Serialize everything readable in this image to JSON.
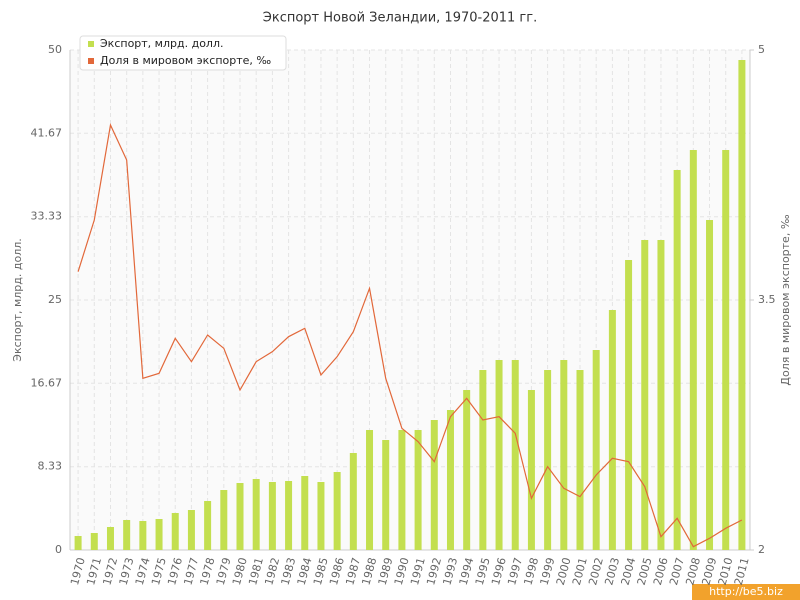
{
  "chart_data": {
    "type": "bar",
    "title": "Экспорт Новой Зеландии, 1970-2011 гг.",
    "y_label": "Экспорт, млрд. долл.",
    "y2_label": "Доля в мировом экспорте, ‰",
    "watermark": "http://be5.biz",
    "categories": [
      "1970",
      "1971",
      "1972",
      "1973",
      "1974",
      "1975",
      "1976",
      "1977",
      "1978",
      "1979",
      "1980",
      "1981",
      "1982",
      "1983",
      "1984",
      "1985",
      "1986",
      "1987",
      "1988",
      "1989",
      "1990",
      "1991",
      "1992",
      "1993",
      "1994",
      "1995",
      "1996",
      "1997",
      "1998",
      "1999",
      "2000",
      "2001",
      "2002",
      "2003",
      "2004",
      "2005",
      "2006",
      "2007",
      "2008",
      "2009",
      "2010",
      "2011"
    ],
    "series": [
      {
        "name": "Экспорт, млрд. долл.",
        "type": "bar",
        "color": "#c3df4f",
        "values": [
          1.4,
          1.7,
          2.3,
          3.0,
          2.9,
          3.1,
          3.7,
          4.0,
          4.9,
          6.0,
          6.7,
          7.1,
          6.8,
          6.9,
          7.4,
          6.8,
          7.8,
          9.7,
          12.0,
          11.0,
          12.0,
          12.0,
          13.0,
          14.0,
          16.0,
          18.0,
          19.0,
          19.0,
          16.0,
          18.0,
          19.0,
          18.0,
          20.0,
          24.0,
          29.0,
          31.0,
          31.0,
          38.0,
          40.0,
          33.0,
          40.0,
          49.0
        ]
      },
      {
        "name": "Доля в мировом экспорте, ‰",
        "type": "line",
        "axis": "y2",
        "color": "#e2683a",
        "values": [
          3.67,
          3.98,
          4.55,
          4.34,
          3.03,
          3.06,
          3.27,
          3.13,
          3.29,
          3.21,
          2.96,
          3.13,
          3.19,
          3.28,
          3.33,
          3.05,
          3.16,
          3.31,
          3.57,
          3.03,
          2.73,
          2.65,
          2.53,
          2.8,
          2.91,
          2.78,
          2.8,
          2.7,
          2.31,
          2.5,
          2.37,
          2.32,
          2.45,
          2.55,
          2.53,
          2.38,
          2.08,
          2.19,
          2.02,
          2.07,
          2.13,
          2.18
        ]
      }
    ],
    "ylim": [
      0,
      50
    ],
    "yticks": [
      0,
      8.33,
      16.67,
      25,
      33.33,
      41.67,
      50
    ],
    "y2lim": [
      2,
      5
    ],
    "y2ticks": [
      2,
      3.5,
      5
    ],
    "grid": true
  }
}
